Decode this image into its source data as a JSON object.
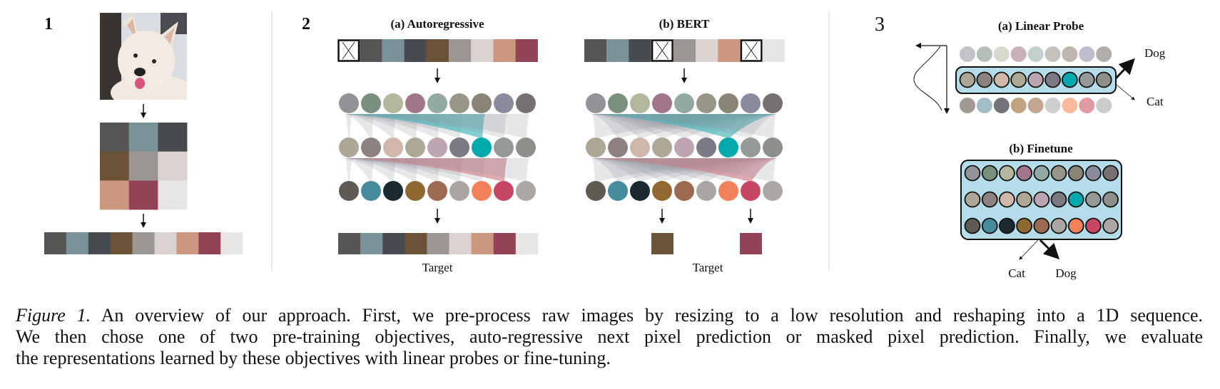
{
  "panel1": {
    "number": "1"
  },
  "panel2": {
    "number": "2",
    "autoregressive_title": "(a) Autoregressive",
    "bert_title": "(b) BERT",
    "target_label": "Target"
  },
  "panel3": {
    "number": "3",
    "linear_probe_title": "(a) Linear Probe",
    "finetune_title": "(b) Finetune",
    "dog_label": "Dog",
    "cat_label": "Cat"
  },
  "colors": {
    "pixels": [
      "#575553",
      "#7a9399",
      "#464b4f",
      "#6a5336",
      "#9b9693",
      "#dad3cf",
      "#cb977f",
      "#924356",
      "#e8e6e5"
    ],
    "layer1": [
      "#939296",
      "#7a907e",
      "#b3b79e",
      "#a17689",
      "#93aaa4",
      "#989589",
      "#8a8477",
      "#8a8c9e",
      "#767170"
    ],
    "layer2": [
      "#ada797",
      "#8e8280",
      "#cfb8ab",
      "#aea896",
      "#bda6b1",
      "#7c7a85",
      "#00a9ac",
      "#959a98",
      "#8e8e8b"
    ],
    "layer3": [
      "#5f5a53",
      "#478c9c",
      "#1b2a30",
      "#8f6832",
      "#9c6a50",
      "#a9a6a3",
      "#f28058",
      "#c54764",
      "#aaa7a4"
    ],
    "probe_above": [
      "#c4c3c7",
      "#b6bfb6",
      "#d6d9cb",
      "#cbb0bc",
      "#c4d0cd",
      "#c5c2bc",
      "#bdb5ae",
      "#bebfca",
      "#b2aeab"
    ],
    "probe_below": [
      "#a19a93",
      "#a2bcc8",
      "#737479",
      "#c1a481",
      "#c4a594",
      "#d0cdcd",
      "#f9b99c",
      "#e09aa3",
      "#cdcccb"
    ],
    "attention_highlight_1": "#3fb3b8",
    "attention_highlight_2": "#d0808c",
    "probe_box": "#b4dde9"
  },
  "caption": {
    "figure_label": "Figure 1.",
    "line1": "An overview of our approach. First, we pre-process raw images by resizing to a low resolution and reshaping into a 1D sequence.",
    "line2": "We then chose one of two pre-training objectives, auto-regressive next pixel prediction or masked pixel prediction. Finally, we evaluate",
    "line3": "the representations learned by these objectives with linear probes or fine-tuning."
  }
}
